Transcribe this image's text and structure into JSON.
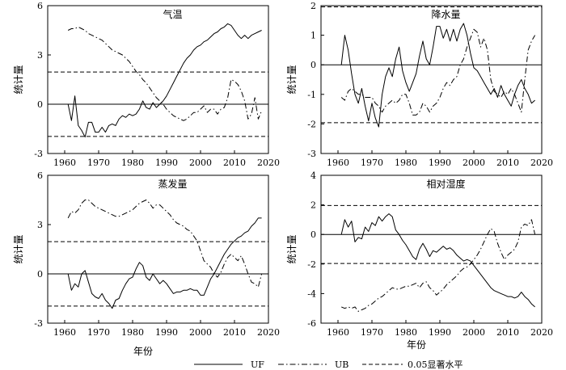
{
  "chart_data": [
    {
      "type": "line",
      "title": "气温",
      "ylabel": "统计量",
      "xlim": [
        1955,
        2020
      ],
      "ylim": [
        -3,
        6
      ],
      "xticks": [
        1960,
        1970,
        1980,
        1990,
        2000,
        2010,
        2020
      ],
      "yticks": [
        -3,
        0,
        3,
        6
      ],
      "hlines": [
        1.96,
        -1.96
      ],
      "series": [
        {
          "name": "UF",
          "x": [
            1961,
            1962,
            1963,
            1964,
            1965,
            1966,
            1967,
            1968,
            1969,
            1970,
            1971,
            1972,
            1973,
            1974,
            1975,
            1976,
            1977,
            1978,
            1979,
            1980,
            1981,
            1982,
            1983,
            1984,
            1985,
            1986,
            1987,
            1988,
            1989,
            1990,
            1991,
            1992,
            1993,
            1994,
            1995,
            1996,
            1997,
            1998,
            1999,
            2000,
            2001,
            2002,
            2003,
            2004,
            2005,
            2006,
            2007,
            2008,
            2009,
            2010,
            2011,
            2012,
            2013,
            2014,
            2015,
            2016,
            2017,
            2018
          ],
          "y": [
            0,
            -1.0,
            0.5,
            -1.3,
            -1.6,
            -2.0,
            -1.1,
            -1.1,
            -1.7,
            -1.7,
            -1.4,
            -1.7,
            -1.3,
            -1.2,
            -1.3,
            -0.9,
            -0.7,
            -0.8,
            -0.6,
            -0.7,
            -0.6,
            -0.3,
            0.2,
            -0.2,
            -0.3,
            0.1,
            -0.2,
            0,
            0.2,
            0.5,
            0.9,
            1.3,
            1.7,
            2.1,
            2.5,
            2.8,
            3.0,
            3.3,
            3.5,
            3.6,
            3.8,
            3.9,
            4.1,
            4.3,
            4.4,
            4.6,
            4.7,
            4.9,
            4.8,
            4.5,
            4.2,
            4.0,
            4.2,
            4.0,
            4.2,
            4.3,
            4.4,
            4.5
          ]
        },
        {
          "name": "UB",
          "x": [
            1961,
            1962,
            1963,
            1964,
            1965,
            1966,
            1967,
            1968,
            1969,
            1970,
            1971,
            1972,
            1973,
            1974,
            1975,
            1976,
            1977,
            1978,
            1979,
            1980,
            1981,
            1982,
            1983,
            1984,
            1985,
            1986,
            1987,
            1988,
            1989,
            1990,
            1991,
            1992,
            1993,
            1994,
            1995,
            1996,
            1997,
            1998,
            1999,
            2000,
            2001,
            2002,
            2003,
            2004,
            2005,
            2006,
            2007,
            2008,
            2009,
            2010,
            2011,
            2012,
            2013,
            2014,
            2015,
            2016,
            2017,
            2018
          ],
          "y": [
            4.5,
            4.6,
            4.6,
            4.7,
            4.6,
            4.5,
            4.3,
            4.2,
            4.1,
            4.0,
            3.9,
            3.7,
            3.5,
            3.3,
            3.2,
            3.1,
            3.0,
            2.8,
            2.6,
            2.3,
            2.0,
            1.8,
            1.5,
            1.3,
            1.0,
            0.7,
            0.4,
            0.2,
            0,
            -0.3,
            -0.5,
            -0.7,
            -0.8,
            -0.9,
            -1.0,
            -0.9,
            -0.7,
            -0.5,
            -0.5,
            -0.3,
            -0.1,
            -0.5,
            -0.3,
            -0.3,
            -0.6,
            -0.3,
            -0.2,
            0.4,
            1.5,
            1.4,
            1.2,
            0.8,
            0.2,
            -0.9,
            -0.6,
            0.4,
            -0.9,
            -0.4
          ]
        }
      ]
    },
    {
      "type": "line",
      "title": "降水量",
      "ylabel": "统计量",
      "xlim": [
        1955,
        2020
      ],
      "ylim": [
        -3,
        2
      ],
      "xticks": [
        1960,
        1970,
        1980,
        1990,
        2000,
        2010,
        2020
      ],
      "yticks": [
        -3,
        -2,
        -1,
        0,
        1,
        2
      ],
      "hlines": [
        1.96,
        -1.96
      ],
      "series": [
        {
          "name": "UF",
          "x": [
            1961,
            1962,
            1963,
            1964,
            1965,
            1966,
            1967,
            1968,
            1969,
            1970,
            1971,
            1972,
            1973,
            1974,
            1975,
            1976,
            1977,
            1978,
            1979,
            1980,
            1981,
            1982,
            1983,
            1984,
            1985,
            1986,
            1987,
            1988,
            1989,
            1990,
            1991,
            1992,
            1993,
            1994,
            1995,
            1996,
            1997,
            1998,
            1999,
            2000,
            2001,
            2002,
            2003,
            2004,
            2005,
            2006,
            2007,
            2008,
            2009,
            2010,
            2011,
            2012,
            2013,
            2014,
            2015,
            2016,
            2017,
            2018
          ],
          "y": [
            0,
            1.0,
            0.5,
            -0.3,
            -1.0,
            -1.3,
            -0.8,
            -1.4,
            -1.9,
            -1.3,
            -1.8,
            -2.1,
            -1.0,
            -0.4,
            -0.1,
            -0.4,
            0.2,
            0.6,
            -0.2,
            -0.6,
            -0.9,
            -0.6,
            -0.3,
            0.3,
            0.8,
            0.2,
            0,
            0.6,
            1.3,
            1.3,
            0.9,
            1.2,
            0.8,
            1.2,
            0.8,
            1.2,
            1.4,
            1.0,
            0.4,
            -0.1,
            -0.2,
            -0.4,
            -0.6,
            -0.8,
            -1.0,
            -0.8,
            -1.1,
            -0.7,
            -1.0,
            -1.2,
            -1.4,
            -1.0,
            -0.7,
            -0.5,
            -0.8,
            -1.0,
            -1.3,
            -1.2
          ]
        },
        {
          "name": "UB",
          "x": [
            1961,
            1962,
            1963,
            1964,
            1965,
            1966,
            1967,
            1968,
            1969,
            1970,
            1971,
            1972,
            1973,
            1974,
            1975,
            1976,
            1977,
            1978,
            1979,
            1980,
            1981,
            1982,
            1983,
            1984,
            1985,
            1986,
            1987,
            1988,
            1989,
            1990,
            1991,
            1992,
            1993,
            1994,
            1995,
            1996,
            1997,
            1998,
            1999,
            2000,
            2001,
            2002,
            2003,
            2004,
            2005,
            2006,
            2007,
            2008,
            2009,
            2010,
            2011,
            2012,
            2013,
            2014,
            2015,
            2016,
            2017,
            2018
          ],
          "y": [
            -1.1,
            -1.2,
            -0.9,
            -0.8,
            -0.9,
            -1.0,
            -1.0,
            -1.1,
            -1.1,
            -1.1,
            -1.3,
            -1.4,
            -1.6,
            -1.4,
            -1.3,
            -1.2,
            -1.3,
            -1.2,
            -1.0,
            -1.0,
            -1.3,
            -1.7,
            -1.7,
            -1.6,
            -1.3,
            -1.4,
            -1.6,
            -1.4,
            -1.3,
            -1.1,
            -0.8,
            -0.6,
            -0.7,
            -0.5,
            -0.4,
            0,
            0.2,
            0.6,
            0.9,
            1.2,
            1.1,
            0.6,
            0.9,
            0.5,
            -0.5,
            -0.9,
            -1.0,
            -1.1,
            -0.9,
            -1.0,
            -0.8,
            -1.0,
            -1.3,
            -1.6,
            -0.5,
            0.5,
            0.8,
            1.0
          ]
        }
      ]
    },
    {
      "type": "line",
      "title": "蒸发量",
      "ylabel": "统计量",
      "xlabel": "年份",
      "xlim": [
        1955,
        2020
      ],
      "ylim": [
        -3,
        6
      ],
      "xticks": [
        1960,
        1970,
        1980,
        1990,
        2000,
        2010,
        2020
      ],
      "yticks": [
        -3,
        0,
        3,
        6
      ],
      "hlines": [
        1.96,
        -1.96
      ],
      "series": [
        {
          "name": "UF",
          "x": [
            1961,
            1962,
            1963,
            1964,
            1965,
            1966,
            1967,
            1968,
            1969,
            1970,
            1971,
            1972,
            1973,
            1974,
            1975,
            1976,
            1977,
            1978,
            1979,
            1980,
            1981,
            1982,
            1983,
            1984,
            1985,
            1986,
            1987,
            1988,
            1989,
            1990,
            1991,
            1992,
            1993,
            1994,
            1995,
            1996,
            1997,
            1998,
            1999,
            2000,
            2001,
            2002,
            2003,
            2004,
            2005,
            2006,
            2007,
            2008,
            2009,
            2010,
            2011,
            2012,
            2013,
            2014,
            2015,
            2016,
            2017,
            2018
          ],
          "y": [
            0,
            -1.0,
            -0.6,
            -0.8,
            0,
            0.2,
            -0.5,
            -1.2,
            -1.4,
            -1.5,
            -1.2,
            -1.6,
            -1.8,
            -2.1,
            -1.6,
            -1.5,
            -1.0,
            -0.6,
            -0.3,
            -0.2,
            0.3,
            0.7,
            0.5,
            -0.2,
            -0.4,
            0,
            -0.3,
            -0.6,
            -0.4,
            -0.6,
            -0.9,
            -1.2,
            -1.1,
            -1.1,
            -1.0,
            -1.0,
            -0.9,
            -1.0,
            -1.0,
            -1.3,
            -1.3,
            -0.8,
            -0.3,
            0,
            0.4,
            0.8,
            1.2,
            1.5,
            1.8,
            2.0,
            2.2,
            2.3,
            2.5,
            2.6,
            2.9,
            3.1,
            3.4,
            3.4
          ]
        },
        {
          "name": "UB",
          "x": [
            1961,
            1962,
            1963,
            1964,
            1965,
            1966,
            1967,
            1968,
            1969,
            1970,
            1971,
            1972,
            1973,
            1974,
            1975,
            1976,
            1977,
            1978,
            1979,
            1980,
            1981,
            1982,
            1983,
            1984,
            1985,
            1986,
            1987,
            1988,
            1989,
            1990,
            1991,
            1992,
            1993,
            1994,
            1995,
            1996,
            1997,
            1998,
            1999,
            2000,
            2001,
            2002,
            2003,
            2004,
            2005,
            2006,
            2007,
            2008,
            2009,
            2010,
            2011,
            2012,
            2013,
            2014,
            2015,
            2016,
            2017,
            2018
          ],
          "y": [
            3.4,
            3.8,
            3.7,
            3.9,
            4.3,
            4.5,
            4.5,
            4.3,
            4.1,
            4.0,
            3.9,
            3.8,
            3.7,
            3.6,
            3.5,
            3.5,
            3.6,
            3.7,
            3.8,
            3.9,
            4.1,
            4.3,
            4.4,
            4.5,
            4.3,
            4.0,
            4.2,
            4.2,
            4.0,
            3.8,
            3.6,
            3.3,
            3.1,
            3.0,
            2.9,
            2.7,
            2.6,
            2.3,
            2.0,
            1.4,
            0.8,
            0.6,
            0.4,
            0,
            -0.2,
            0.1,
            0.6,
            1.0,
            1.2,
            1.0,
            0.8,
            1.1,
            0.6,
            0,
            -0.5,
            -0.6,
            -0.8,
            0
          ]
        }
      ]
    },
    {
      "type": "line",
      "title": "相对湿度",
      "ylabel": "统计量",
      "xlabel": "年份",
      "xlim": [
        1955,
        2020
      ],
      "ylim": [
        -6,
        4
      ],
      "xticks": [
        1960,
        1970,
        1980,
        1990,
        2000,
        2010,
        2020
      ],
      "yticks": [
        -6,
        -4,
        -2,
        0,
        2,
        4
      ],
      "hlines": [
        1.96,
        -1.96
      ],
      "series": [
        {
          "name": "UF",
          "x": [
            1961,
            1962,
            1963,
            1964,
            1965,
            1966,
            1967,
            1968,
            1969,
            1970,
            1971,
            1972,
            1973,
            1974,
            1975,
            1976,
            1977,
            1978,
            1979,
            1980,
            1981,
            1982,
            1983,
            1984,
            1985,
            1986,
            1987,
            1988,
            1989,
            1990,
            1991,
            1992,
            1993,
            1994,
            1995,
            1996,
            1997,
            1998,
            1999,
            2000,
            2001,
            2002,
            2003,
            2004,
            2005,
            2006,
            2007,
            2008,
            2009,
            2010,
            2011,
            2012,
            2013,
            2014,
            2015,
            2016,
            2017,
            2018
          ],
          "y": [
            0,
            1.0,
            0.5,
            0.9,
            -0.5,
            -0.2,
            -0.3,
            0.5,
            0.2,
            0.8,
            0.6,
            1.2,
            0.9,
            1.2,
            1.4,
            1.2,
            0.3,
            0,
            -0.4,
            -0.7,
            -1.1,
            -1.5,
            -1.7,
            -1.0,
            -0.6,
            -1.0,
            -1.5,
            -1.1,
            -1.2,
            -1.0,
            -0.8,
            -1.0,
            -0.9,
            -1.1,
            -1.4,
            -1.6,
            -1.8,
            -1.7,
            -1.8,
            -2.1,
            -2.4,
            -2.7,
            -3.0,
            -3.3,
            -3.6,
            -3.8,
            -3.9,
            -4.0,
            -4.1,
            -4.2,
            -4.2,
            -4.3,
            -4.2,
            -3.9,
            -4.2,
            -4.4,
            -4.7,
            -4.9
          ]
        },
        {
          "name": "UB",
          "x": [
            1961,
            1962,
            1963,
            1964,
            1965,
            1966,
            1967,
            1968,
            1969,
            1970,
            1971,
            1972,
            1973,
            1974,
            1975,
            1976,
            1977,
            1978,
            1979,
            1980,
            1981,
            1982,
            1983,
            1984,
            1985,
            1986,
            1987,
            1988,
            1989,
            1990,
            1991,
            1992,
            1993,
            1994,
            1995,
            1996,
            1997,
            1998,
            1999,
            2000,
            2001,
            2002,
            2003,
            2004,
            2005,
            2006,
            2007,
            2008,
            2009,
            2010,
            2011,
            2012,
            2013,
            2014,
            2015,
            2016,
            2017,
            2018
          ],
          "y": [
            -4.9,
            -5.0,
            -4.9,
            -5.0,
            -4.9,
            -5.2,
            -5.1,
            -5.0,
            -4.8,
            -4.7,
            -4.5,
            -4.3,
            -4.2,
            -4.0,
            -3.8,
            -3.6,
            -3.7,
            -3.7,
            -3.6,
            -3.5,
            -3.5,
            -3.4,
            -3.3,
            -3.6,
            -3.3,
            -3.2,
            -3.6,
            -3.8,
            -4.1,
            -3.9,
            -3.7,
            -3.4,
            -3.2,
            -3.0,
            -2.8,
            -2.5,
            -2.3,
            -2.2,
            -2.0,
            -1.7,
            -1.4,
            -1.0,
            -0.5,
            0,
            0.4,
            0.2,
            -0.6,
            -1.2,
            -1.7,
            -1.4,
            -1.2,
            -1.0,
            -0.5,
            0.5,
            0.7,
            0.6,
            1.0,
            0
          ]
        }
      ]
    }
  ],
  "xlabel": "年份",
  "legend": [
    {
      "label": "UF",
      "style": "solid"
    },
    {
      "label": "UB",
      "style": "dashdot"
    },
    {
      "label": "0.05显著水平",
      "style": "dashed"
    }
  ]
}
